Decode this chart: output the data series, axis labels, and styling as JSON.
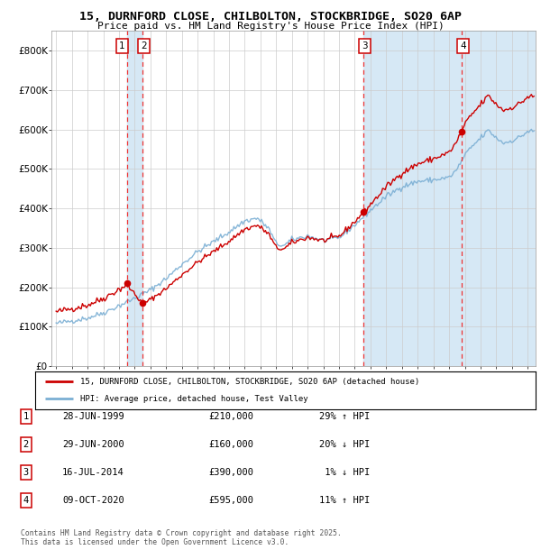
{
  "title_line1": "15, DURNFORD CLOSE, CHILBOLTON, STOCKBRIDGE, SO20 6AP",
  "title_line2": "Price paid vs. HM Land Registry's House Price Index (HPI)",
  "hpi_color": "#7BAFD4",
  "price_color": "#CC0000",
  "dot_color": "#CC0000",
  "bg_color": "#FFFFFF",
  "plot_bg_color": "#FFFFFF",
  "shaded_bg": "#D6E8F5",
  "grid_color": "#CCCCCC",
  "vline_color": "#EE3333",
  "transactions": [
    {
      "label": "1",
      "date_str": "28-JUN-1999",
      "date_x": 1999.49,
      "price": 210000
    },
    {
      "label": "2",
      "date_str": "29-JUN-2000",
      "date_x": 2000.49,
      "price": 160000
    },
    {
      "label": "3",
      "date_str": "16-JUL-2014",
      "date_x": 2014.54,
      "price": 390000
    },
    {
      "label": "4",
      "date_str": "09-OCT-2020",
      "date_x": 2020.77,
      "price": 595000
    }
  ],
  "legend_label_price": "15, DURNFORD CLOSE, CHILBOLTON, STOCKBRIDGE, SO20 6AP (detached house)",
  "legend_label_hpi": "HPI: Average price, detached house, Test Valley",
  "footer_line1": "Contains HM Land Registry data © Crown copyright and database right 2025.",
  "footer_line2": "This data is licensed under the Open Government Licence v3.0.",
  "table_rows": [
    [
      "1",
      "28-JUN-1999",
      "£210,000",
      "29% ↑ HPI"
    ],
    [
      "2",
      "29-JUN-2000",
      "£160,000",
      "20% ↓ HPI"
    ],
    [
      "3",
      "16-JUL-2014",
      "£390,000",
      " 1% ↓ HPI"
    ],
    [
      "4",
      "09-OCT-2020",
      "£595,000",
      "11% ↑ HPI"
    ]
  ],
  "ylim": [
    0,
    850000
  ],
  "xlim": [
    1994.7,
    2025.5
  ],
  "yticks": [
    0,
    100000,
    200000,
    300000,
    400000,
    500000,
    600000,
    700000,
    800000
  ],
  "ytick_labels": [
    "£0",
    "£100K",
    "£200K",
    "£300K",
    "£400K",
    "£500K",
    "£600K",
    "£700K",
    "£800K"
  ],
  "xticks": [
    1995,
    1996,
    1997,
    1998,
    1999,
    2000,
    2001,
    2002,
    2003,
    2004,
    2005,
    2006,
    2007,
    2008,
    2009,
    2010,
    2011,
    2012,
    2013,
    2014,
    2015,
    2016,
    2017,
    2018,
    2019,
    2020,
    2021,
    2022,
    2023,
    2024,
    2025
  ],
  "hpi_anchors_x": [
    1995.0,
    1996.0,
    1997.0,
    1998.0,
    1999.0,
    2000.0,
    2001.0,
    2002.0,
    2003.0,
    2004.0,
    2005.0,
    2006.0,
    2007.0,
    2007.8,
    2008.5,
    2009.0,
    2009.5,
    2010.0,
    2011.0,
    2012.0,
    2013.0,
    2014.0,
    2015.0,
    2016.0,
    2017.0,
    2018.0,
    2019.0,
    2020.0,
    2020.5,
    2021.0,
    2021.5,
    2022.0,
    2022.5,
    2023.0,
    2023.5,
    2024.0,
    2024.5,
    2025.0
  ],
  "hpi_anchors_y": [
    108000,
    115000,
    122000,
    135000,
    153000,
    172000,
    193000,
    222000,
    258000,
    290000,
    315000,
    340000,
    368000,
    375000,
    350000,
    310000,
    305000,
    320000,
    330000,
    318000,
    325000,
    358000,
    395000,
    430000,
    455000,
    468000,
    472000,
    478000,
    498000,
    535000,
    558000,
    578000,
    598000,
    578000,
    565000,
    572000,
    580000,
    595000
  ],
  "noise_seed": 42,
  "noise_scale": 3500
}
